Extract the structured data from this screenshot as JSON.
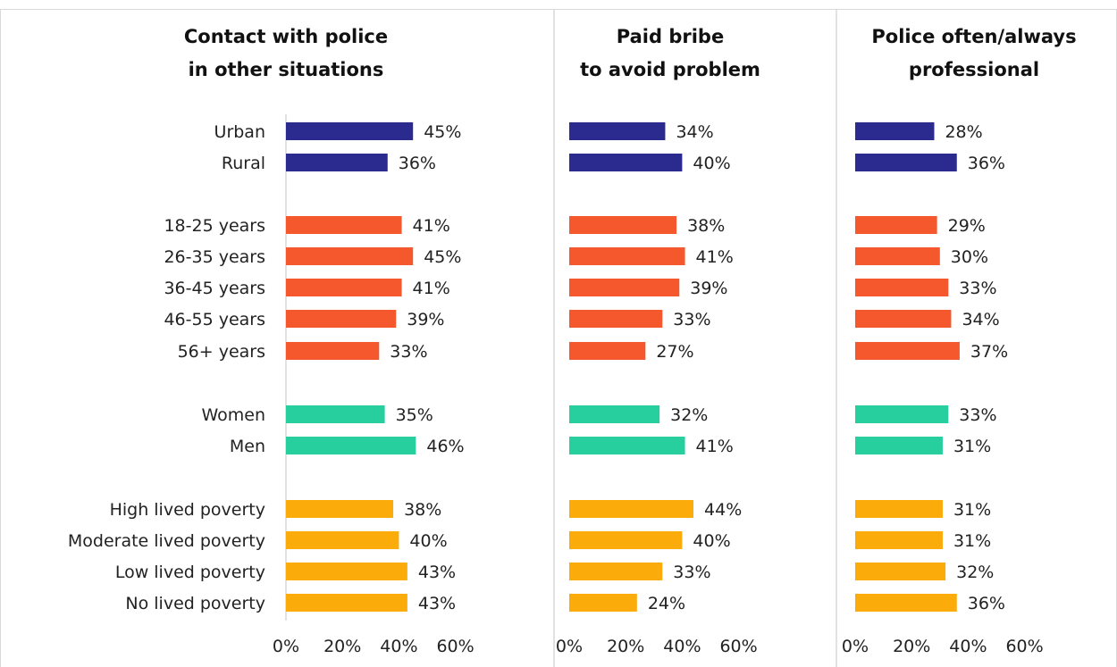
{
  "chart_data": {
    "type": "bar",
    "orientation": "horizontal",
    "xlim": [
      0,
      60
    ],
    "x_ticks": [
      "0%",
      "20%",
      "40%",
      "60%"
    ],
    "grid": false,
    "categories": [
      "Urban",
      "Rural",
      "18-25 years",
      "26-35 years",
      "36-45 years",
      "46-55 years",
      "56+ years",
      "Women",
      "Men",
      "High lived poverty",
      "Moderate lived poverty",
      "Low lived poverty",
      "No lived poverty"
    ],
    "group_colors": {
      "location": "#2a2a8f",
      "age": "#f5582c",
      "gender": "#27cf9f",
      "poverty": "#fbab0a"
    },
    "category_groups": [
      "location",
      "location",
      "age",
      "age",
      "age",
      "age",
      "age",
      "gender",
      "gender",
      "poverty",
      "poverty",
      "poverty",
      "poverty"
    ],
    "panels": [
      {
        "title": [
          "Contact with police",
          "in other situations"
        ],
        "values": [
          45,
          36,
          41,
          45,
          41,
          39,
          33,
          35,
          46,
          38,
          40,
          43,
          43
        ],
        "labels": [
          "45%",
          "36%",
          "41%",
          "45%",
          "41%",
          "39%",
          "33%",
          "35%",
          "46%",
          "38%",
          "40%",
          "43%",
          "43%"
        ]
      },
      {
        "title": [
          "Paid bribe",
          "to avoid problem"
        ],
        "values": [
          34,
          40,
          38,
          41,
          39,
          33,
          27,
          32,
          41,
          44,
          40,
          33,
          24
        ],
        "labels": [
          "34%",
          "40%",
          "38%",
          "41%",
          "39%",
          "33%",
          "27%",
          "32%",
          "41%",
          "44%",
          "40%",
          "33%",
          "24%"
        ]
      },
      {
        "title": [
          "Police often/always",
          "professional"
        ],
        "values": [
          28,
          36,
          29,
          30,
          33,
          34,
          37,
          33,
          31,
          31,
          31,
          32,
          36
        ],
        "labels": [
          "28%",
          "36%",
          "29%",
          "30%",
          "33%",
          "34%",
          "37%",
          "33%",
          "31%",
          "31%",
          "31%",
          "32%",
          "36%"
        ]
      }
    ]
  }
}
